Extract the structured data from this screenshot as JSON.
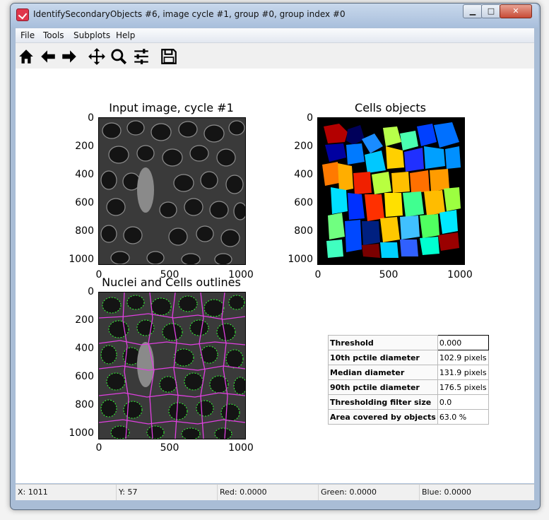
{
  "window": {
    "title": "IdentifySecondaryObjects #6, image cycle #1, group #0, group index #0"
  },
  "menu": [
    "File",
    "Tools",
    "Subplots",
    "Help"
  ],
  "toolbar": [
    "home-icon",
    "back-arrow-icon",
    "forward-arrow-icon",
    "pan-icon",
    "zoom-icon",
    "configure-subplots-icon",
    "save-icon"
  ],
  "plots": {
    "input": {
      "title": "Input image, cycle #1"
    },
    "cells": {
      "title": "Cells objects"
    },
    "outlines": {
      "title": "Nuclei and Cells outlines"
    },
    "y_ticks": [
      "0",
      "200",
      "400",
      "600",
      "800",
      "1000"
    ],
    "x_ticks": [
      "0",
      "500",
      "1000"
    ]
  },
  "stats": [
    {
      "label": "Threshold",
      "value": "0.000"
    },
    {
      "label": "10th pctile diameter",
      "value": "102.9 pixels"
    },
    {
      "label": "Median diameter",
      "value": "131.9 pixels"
    },
    {
      "label": "90th pctile diameter",
      "value": "176.5 pixels"
    },
    {
      "label": "Thresholding filter size",
      "value": "0.0"
    },
    {
      "label": "Area covered by objects",
      "value": "63.0 %"
    }
  ],
  "status": {
    "x": "X: 1011",
    "y": "Y: 57",
    "red": "Red: 0.0000",
    "green": "Green: 0.0000",
    "blue": "Blue: 0.0000"
  }
}
